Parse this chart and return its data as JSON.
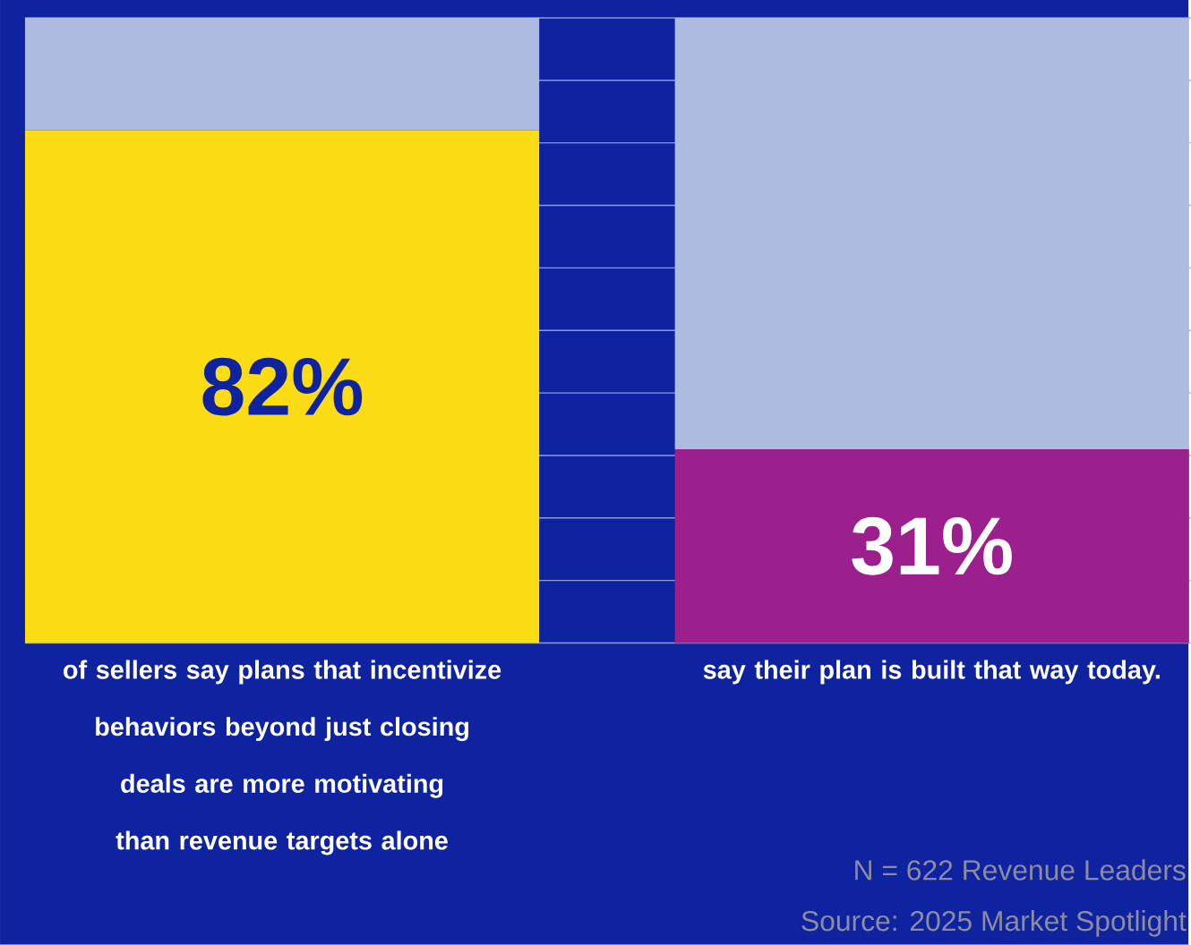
{
  "chart_data": {
    "type": "bar",
    "stacked": true,
    "categories": [
      "of sellers say plans that incentivize behaviors beyond just closing deals are more motivating than revenue targets alone",
      "say their plan is built that way today."
    ],
    "series": [
      {
        "colors": [
          "#fcdc14",
          "#9b1f8c"
        ],
        "values": [
          82,
          31
        ],
        "value_labels": [
          "82%",
          "31%"
        ]
      },
      {
        "color": "#aebbe0",
        "values": [
          18,
          69
        ]
      }
    ],
    "ylim": [
      0,
      100
    ],
    "yticks": [
      {
        "value": 0,
        "label": null
      },
      {
        "value": 10,
        "label": null
      },
      {
        "value": 20,
        "label": null
      },
      {
        "value": 30,
        "label": null
      },
      {
        "value": 40,
        "label": null
      },
      {
        "value": 50,
        "label": null
      },
      {
        "value": 60,
        "label": null
      },
      {
        "value": 70,
        "label": null
      },
      {
        "value": 80,
        "label": null
      },
      {
        "value": 90,
        "label": null
      },
      {
        "value": 100,
        "label": null
      }
    ],
    "grid": "y",
    "tick_labels": "x",
    "annotations": [
      "N = 622 Revenue Leaders",
      "Source: 2025 Market Spotlight"
    ]
  }
}
